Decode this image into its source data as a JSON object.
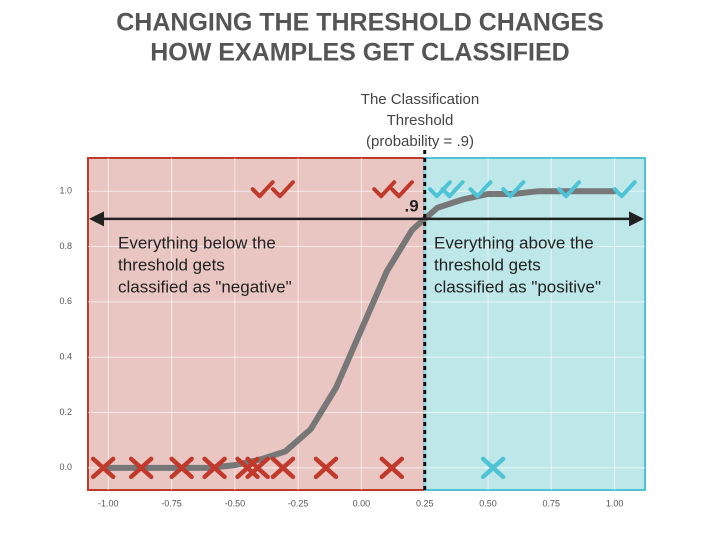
{
  "chart_data": {
    "type": "line",
    "title": [
      "CHANGING THE THRESHOLD CHANGES",
      "HOW EXAMPLES GET CLASSIFIED"
    ],
    "x": [
      -1.0,
      -0.9,
      -0.8,
      -0.7,
      -0.6,
      -0.5,
      -0.4,
      -0.3,
      -0.2,
      -0.1,
      0.0,
      0.1,
      0.2,
      0.3,
      0.4,
      0.5,
      0.6,
      0.7,
      0.8,
      0.9,
      1.0
    ],
    "values": [
      0.0,
      0.0,
      0.0,
      0.0,
      0.0,
      0.01,
      0.03,
      0.06,
      0.14,
      0.29,
      0.5,
      0.71,
      0.86,
      0.94,
      0.97,
      0.99,
      0.99,
      1.0,
      1.0,
      1.0,
      1.0
    ],
    "color": "#777777",
    "points": [
      {
        "marker": "x",
        "color": "#c0392b",
        "x": [
          -1.02,
          -0.87,
          -0.71,
          -0.58,
          -0.45,
          -0.41,
          -0.31,
          -0.14,
          0.12
        ],
        "y": [
          0,
          0,
          0,
          0,
          0,
          0,
          0,
          0,
          0
        ]
      },
      {
        "marker": "x",
        "color": "#4fc3d6",
        "x": [
          0.52
        ],
        "y": [
          0
        ]
      },
      {
        "marker": "check",
        "color": "#c0392b",
        "x": [
          -0.39,
          -0.31,
          0.09,
          0.16
        ],
        "y": [
          1,
          1,
          1,
          1
        ]
      },
      {
        "marker": "check",
        "color": "#4fc3d6",
        "x": [
          0.31,
          0.36,
          0.47,
          0.6,
          0.82,
          1.04
        ],
        "y": [
          1,
          1,
          1,
          1,
          1,
          1
        ]
      }
    ],
    "threshold": {
      "x": 0.25,
      "y": 0.9,
      "label": ".9",
      "caption": [
        "The Classification",
        "Threshold",
        "(probability = .9)"
      ]
    },
    "regions": {
      "below": {
        "fill": "#e9c6c2",
        "stroke": "#c0392b",
        "text": [
          "Everything below the",
          "threshold gets",
          "classified as \"negative\""
        ]
      },
      "above": {
        "fill": "#bde7e8",
        "stroke": "#4fc3d6",
        "text": [
          "Everything above the",
          "threshold gets",
          "classified as \"positive\""
        ]
      }
    },
    "xlim": [
      -1.08,
      1.12
    ],
    "ylim": [
      -0.08,
      1.12
    ],
    "xticks": [
      {
        "value": -1,
        "label": "-1.00"
      },
      {
        "value": -0.75,
        "label": "-0.75"
      },
      {
        "value": -0.5,
        "label": "-0.50"
      },
      {
        "value": -0.25,
        "label": "-0.25"
      },
      {
        "value": 0,
        "label": "0.00"
      },
      {
        "value": 0.25,
        "label": "0.25"
      },
      {
        "value": 0.5,
        "label": "0.50"
      },
      {
        "value": 0.75,
        "label": "0.75"
      },
      {
        "value": 1,
        "label": "1.00"
      }
    ],
    "yticks": [
      {
        "value": 0,
        "label": "0.0"
      },
      0.2,
      0.4,
      0.6,
      0.8,
      {
        "value": 1,
        "label": "1.0"
      }
    ],
    "grid": true
  }
}
